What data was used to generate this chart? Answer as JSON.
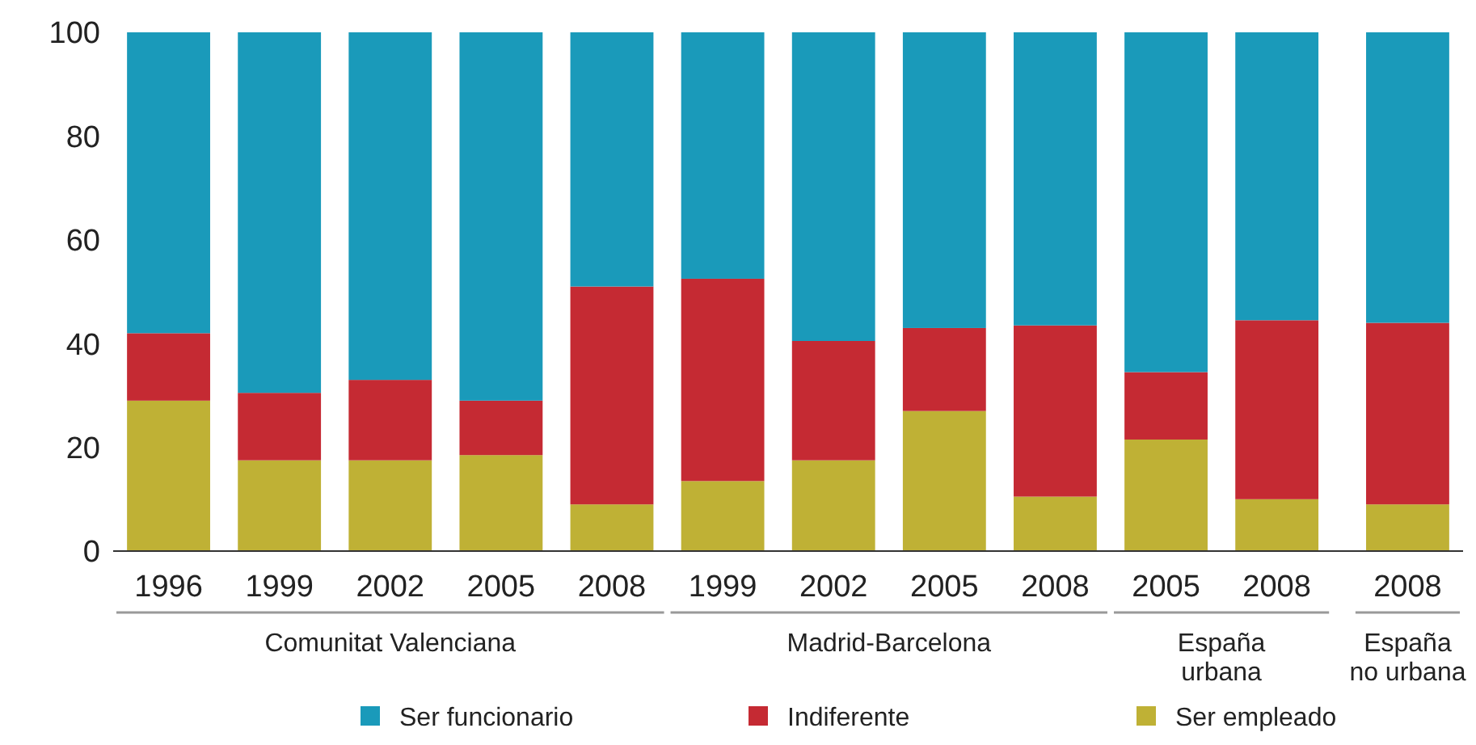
{
  "chart_data": {
    "type": "bar",
    "stacked": true,
    "categories": [
      "1996",
      "1999",
      "2002",
      "2005",
      "2008",
      "1999",
      "2002",
      "2005",
      "2008",
      "2005",
      "2008",
      "2008"
    ],
    "series": [
      {
        "name": "Ser empleado",
        "color": "#bfb135",
        "values": [
          29,
          17.5,
          17.5,
          18.5,
          9,
          13.5,
          17.5,
          27,
          10.5,
          21.5,
          10,
          9
        ]
      },
      {
        "name": "Indiferente",
        "color": "#c52a33",
        "values": [
          13,
          13,
          15.5,
          10.5,
          42,
          39,
          23,
          16,
          33,
          13,
          34.5,
          35
        ]
      },
      {
        "name": "Ser funcionario",
        "color": "#1a9aba",
        "values": [
          58,
          69.5,
          67,
          71,
          49,
          47.5,
          59.5,
          57,
          56.5,
          65.5,
          55.5,
          56
        ]
      }
    ],
    "annotations": [
      "Comunitat Valenciana",
      "Madrid-Barcelona",
      "España urbana",
      "España no urbana"
    ],
    "ylim": [
      0,
      100
    ],
    "yticks": [
      0,
      20,
      40,
      60,
      80,
      100
    ],
    "grid": false,
    "legend": "bottom"
  }
}
